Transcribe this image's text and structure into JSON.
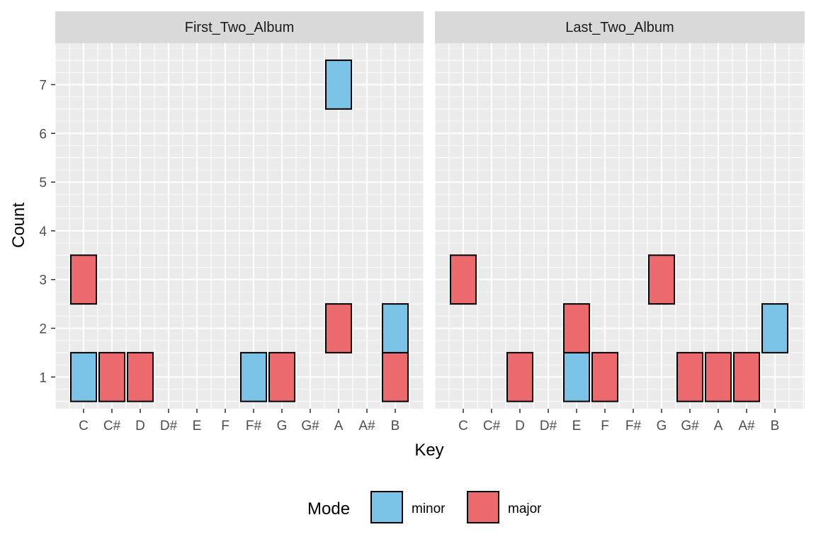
{
  "chart_data": {
    "type": "bar",
    "facets": [
      {
        "label": "First_Two_Album",
        "tiles": [
          {
            "key": "C",
            "count": 1,
            "mode": "minor"
          },
          {
            "key": "C",
            "count": 3,
            "mode": "major"
          },
          {
            "key": "C#",
            "count": 1,
            "mode": "major"
          },
          {
            "key": "D",
            "count": 1,
            "mode": "major"
          },
          {
            "key": "F#",
            "count": 1,
            "mode": "minor"
          },
          {
            "key": "G",
            "count": 1,
            "mode": "major"
          },
          {
            "key": "A",
            "count": 2,
            "mode": "major"
          },
          {
            "key": "A",
            "count": 7,
            "mode": "minor"
          },
          {
            "key": "B",
            "count": 1,
            "mode": "major"
          },
          {
            "key": "B",
            "count": 2,
            "mode": "minor"
          }
        ]
      },
      {
        "label": "Last_Two_Album",
        "tiles": [
          {
            "key": "C",
            "count": 3,
            "mode": "major"
          },
          {
            "key": "D",
            "count": 1,
            "mode": "major"
          },
          {
            "key": "E",
            "count": 1,
            "mode": "minor"
          },
          {
            "key": "E",
            "count": 2,
            "mode": "major"
          },
          {
            "key": "F",
            "count": 1,
            "mode": "major"
          },
          {
            "key": "G",
            "count": 3,
            "mode": "major"
          },
          {
            "key": "G#",
            "count": 1,
            "mode": "major"
          },
          {
            "key": "A",
            "count": 1,
            "mode": "major"
          },
          {
            "key": "A#",
            "count": 1,
            "mode": "major"
          },
          {
            "key": "B",
            "count": 2,
            "mode": "minor"
          }
        ]
      }
    ],
    "categories": [
      "C",
      "C#",
      "D",
      "D#",
      "E",
      "F",
      "F#",
      "G",
      "G#",
      "A",
      "A#",
      "B"
    ],
    "y_ticks": [
      1,
      2,
      3,
      4,
      5,
      6,
      7
    ],
    "ylim": [
      0.35,
      7.85
    ],
    "xlabel": "Key",
    "ylabel": "Count",
    "legend": {
      "title": "Mode",
      "position": "bottom",
      "entries": [
        {
          "label": "minor",
          "color": "#7BC3E6"
        },
        {
          "label": "major",
          "color": "#EC6A6E"
        }
      ]
    },
    "grid": true,
    "colors": {
      "panel_bg": "#EBEBEB",
      "strip_bg": "#D9D9D9",
      "grid": "#FFFFFF"
    }
  }
}
